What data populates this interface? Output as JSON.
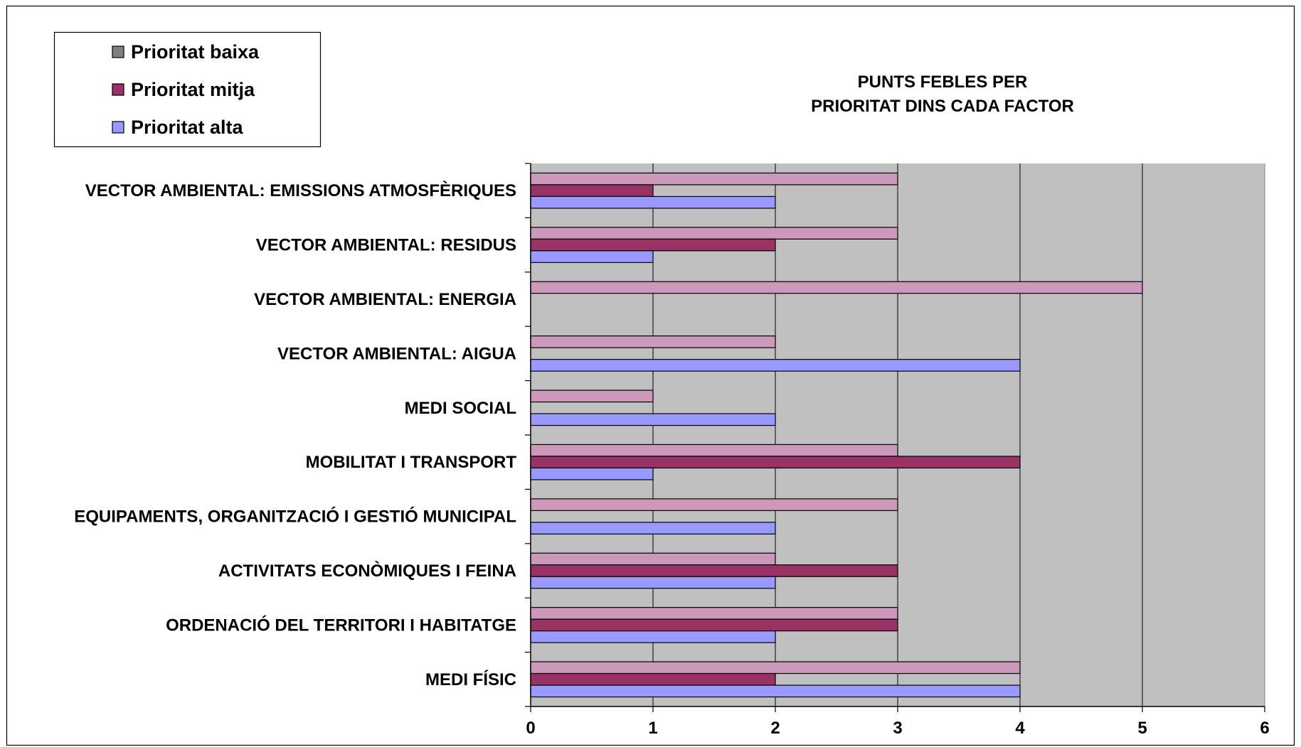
{
  "chart_data": {
    "type": "bar",
    "orientation": "horizontal",
    "title_lines": [
      "PUNTS FEBLES PER",
      "PRIORITAT DINS CADA FACTOR"
    ],
    "categories": [
      "VECTOR AMBIENTAL: EMISSIONS ATMOSFÈRIQUES",
      "VECTOR AMBIENTAL: RESIDUS",
      "VECTOR AMBIENTAL: ENERGIA",
      "VECTOR AMBIENTAL: AIGUA",
      "MEDI SOCIAL",
      "MOBILITAT I TRANSPORT",
      "EQUIPAMENTS, ORGANITZACIÓ I GESTIÓ MUNICIPAL",
      "ACTIVITATS ECONÒMIQUES I FEINA",
      "ORDENACIÓ DEL TERRITORI I HABITATGE",
      "MEDI FÍSIC"
    ],
    "series": [
      {
        "name": "Prioritat baixa",
        "legend_color": "#808080",
        "bar_color": "#cc99bb",
        "values": [
          3,
          3,
          5,
          2,
          1,
          3,
          3,
          2,
          3,
          4
        ]
      },
      {
        "name": "Prioritat mitja",
        "legend_color": "#993366",
        "bar_color": "#993366",
        "values": [
          1,
          2,
          0,
          0,
          0,
          4,
          0,
          3,
          3,
          2
        ]
      },
      {
        "name": "Prioritat alta",
        "legend_color": "#9999ff",
        "bar_color": "#9999ff",
        "values": [
          2,
          1,
          0,
          4,
          2,
          1,
          2,
          2,
          2,
          4
        ]
      }
    ],
    "xlim": [
      0,
      6
    ],
    "x_ticks": [
      0,
      1,
      2,
      3,
      4,
      5,
      6
    ],
    "grid": true,
    "legend_position": "top-left",
    "plot_background": "#c0c0c0"
  }
}
